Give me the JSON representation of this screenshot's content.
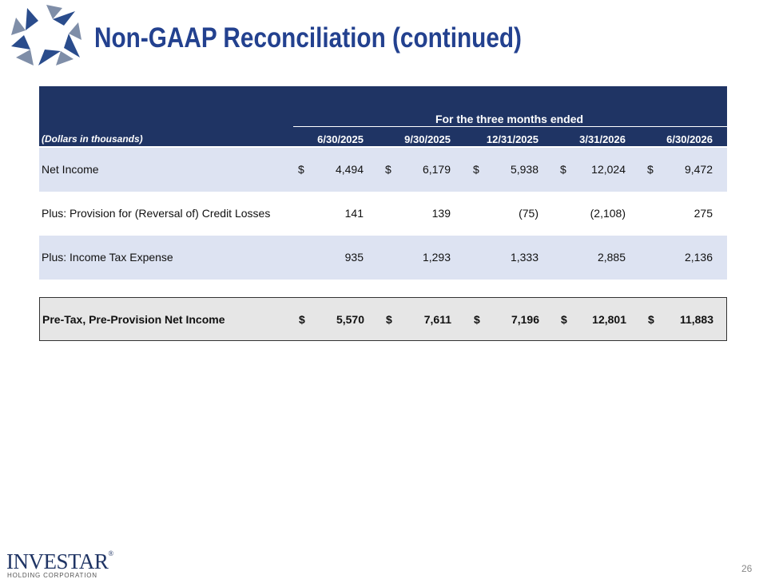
{
  "header": {
    "title": "Non-GAAP Reconciliation (continued)"
  },
  "table": {
    "caption": "(Dollars in thousands)",
    "group_header": "For the three months ended",
    "columns": [
      "6/30/2025",
      "9/30/2025",
      "12/31/2025",
      "3/31/2026",
      "6/30/2026"
    ],
    "rows": [
      {
        "label": "Net Income",
        "cells": [
          {
            "symbol": "$",
            "value": "4,494"
          },
          {
            "symbol": "$",
            "value": "6,179"
          },
          {
            "symbol": "$",
            "value": "5,938"
          },
          {
            "symbol": "$",
            "value": "12,024"
          },
          {
            "symbol": "$",
            "value": "9,472"
          }
        ]
      },
      {
        "label": "Plus: Provision for (Reversal of) Credit Losses",
        "cells": [
          {
            "value": "141"
          },
          {
            "value": "139"
          },
          {
            "value": "(75)"
          },
          {
            "value": "(2,108)"
          },
          {
            "value": "275"
          }
        ]
      },
      {
        "label": "Plus: Income Tax Expense",
        "cells": [
          {
            "value": "935"
          },
          {
            "value": "1,293"
          },
          {
            "value": "1,333"
          },
          {
            "value": "2,885"
          },
          {
            "value": "2,136"
          }
        ]
      }
    ],
    "total": {
      "label": "Pre-Tax, Pre-Provision Net Income",
      "cells": [
        {
          "symbol": "$",
          "value": "5,570"
        },
        {
          "symbol": "$",
          "value": "7,611"
        },
        {
          "symbol": "$",
          "value": "7,196"
        },
        {
          "symbol": "$",
          "value": "12,801"
        },
        {
          "symbol": "$",
          "value": "11,883"
        }
      ]
    }
  },
  "footer": {
    "logo_name": "INVESTAR",
    "logo_mark": "®",
    "logo_subtitle": "HOLDING CORPORATION",
    "page_number": "26"
  }
}
